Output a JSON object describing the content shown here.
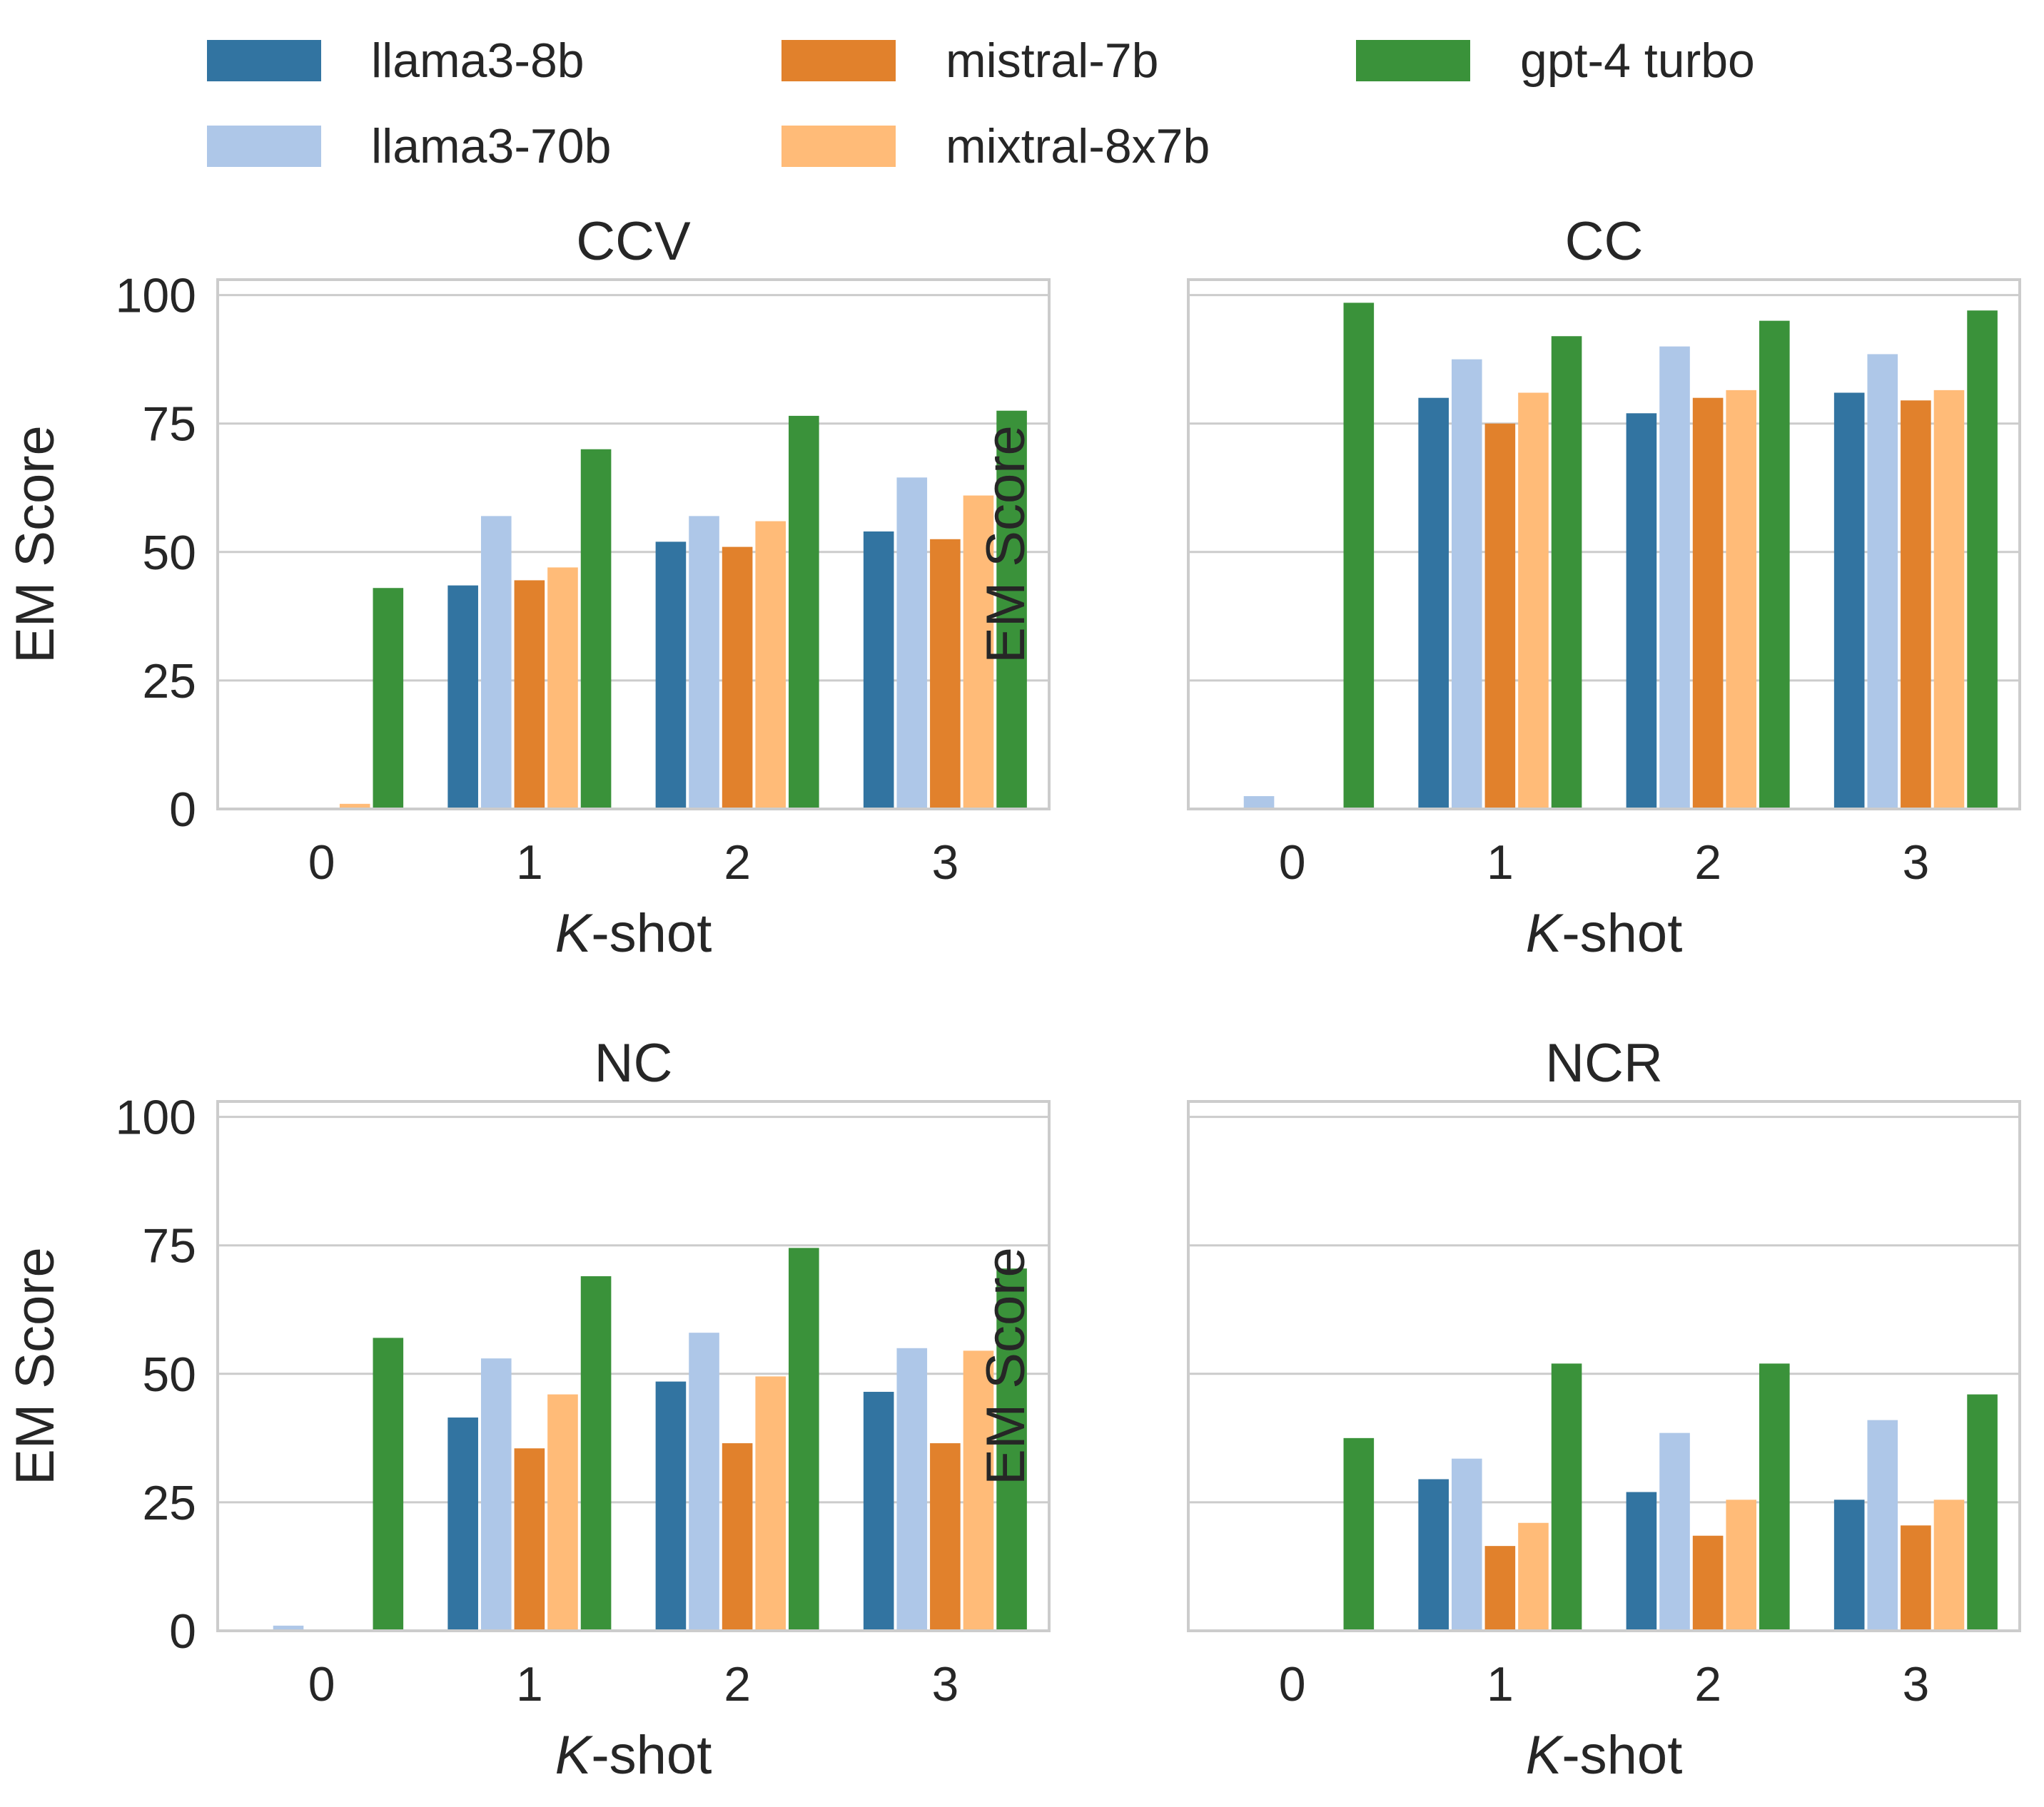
{
  "colors": {
    "llama3-8b": "#3274a1",
    "llama3-70b": "#aec7e8",
    "mistral-7b": "#e1812c",
    "mixtral-8x7b": "#ffbb78",
    "gpt-4 turbo": "#3a923a",
    "grid": "#cccccc",
    "frame": "#cccccc"
  },
  "legend": {
    "items": [
      {
        "name": "llama3-8b",
        "label": "llama3-8b"
      },
      {
        "name": "llama3-70b",
        "label": "llama3-70b"
      },
      {
        "name": "mistral-7b",
        "label": "mistral-7b"
      },
      {
        "name": "mixtral-8x7b",
        "label": "mixtral-8x7b"
      },
      {
        "name": "gpt-4 turbo",
        "label": "gpt-4 turbo"
      }
    ]
  },
  "chart_data": [
    {
      "type": "bar",
      "title": "CCV",
      "xlabel_italic": "K",
      "xlabel_rest": "-shot",
      "ylabel": "EM Score",
      "ylim": [
        0,
        103
      ],
      "yticks": [
        0,
        25,
        50,
        75,
        100
      ],
      "show_ytick_labels": true,
      "categories": [
        "0",
        "1",
        "2",
        "3"
      ],
      "series": [
        {
          "name": "llama3-8b",
          "values": [
            0,
            43.5,
            52,
            54
          ]
        },
        {
          "name": "llama3-70b",
          "values": [
            0,
            57,
            57,
            64.5
          ]
        },
        {
          "name": "mistral-7b",
          "values": [
            0,
            44.5,
            51,
            52.5
          ]
        },
        {
          "name": "mixtral-8x7b",
          "values": [
            1,
            47,
            56,
            61
          ]
        },
        {
          "name": "gpt-4 turbo",
          "values": [
            43,
            70,
            76.5,
            77.5
          ]
        }
      ]
    },
    {
      "type": "bar",
      "title": "CC",
      "xlabel_italic": "K",
      "xlabel_rest": "-shot",
      "ylabel": "EM Score",
      "ylim": [
        0,
        103
      ],
      "yticks": [
        0,
        25,
        50,
        75,
        100
      ],
      "show_ytick_labels": false,
      "categories": [
        "0",
        "1",
        "2",
        "3"
      ],
      "series": [
        {
          "name": "llama3-8b",
          "values": [
            0,
            80,
            77,
            81
          ]
        },
        {
          "name": "llama3-70b",
          "values": [
            2.5,
            87.5,
            90,
            88.5
          ]
        },
        {
          "name": "mistral-7b",
          "values": [
            0,
            75,
            80,
            79.5
          ]
        },
        {
          "name": "mixtral-8x7b",
          "values": [
            0,
            81,
            81.5,
            81.5
          ]
        },
        {
          "name": "gpt-4 turbo",
          "values": [
            98.5,
            92,
            95,
            97
          ]
        }
      ]
    },
    {
      "type": "bar",
      "title": "NC",
      "xlabel_italic": "K",
      "xlabel_rest": "-shot",
      "ylabel": "EM Score",
      "ylim": [
        0,
        103
      ],
      "yticks": [
        0,
        25,
        50,
        75,
        100
      ],
      "show_ytick_labels": true,
      "categories": [
        "0",
        "1",
        "2",
        "3"
      ],
      "series": [
        {
          "name": "llama3-8b",
          "values": [
            0,
            41.5,
            48.5,
            46.5
          ]
        },
        {
          "name": "llama3-70b",
          "values": [
            1,
            53,
            58,
            55
          ]
        },
        {
          "name": "mistral-7b",
          "values": [
            0,
            35.5,
            36.5,
            36.5
          ]
        },
        {
          "name": "mixtral-8x7b",
          "values": [
            0,
            46,
            49.5,
            54.5
          ]
        },
        {
          "name": "gpt-4 turbo",
          "values": [
            57,
            69,
            74.5,
            70.5
          ]
        }
      ]
    },
    {
      "type": "bar",
      "title": "NCR",
      "xlabel_italic": "K",
      "xlabel_rest": "-shot",
      "ylabel": "EM Score",
      "ylim": [
        0,
        103
      ],
      "yticks": [
        0,
        25,
        50,
        75,
        100
      ],
      "show_ytick_labels": false,
      "categories": [
        "0",
        "1",
        "2",
        "3"
      ],
      "series": [
        {
          "name": "llama3-8b",
          "values": [
            0,
            29.5,
            27,
            25.5
          ]
        },
        {
          "name": "llama3-70b",
          "values": [
            0,
            33.5,
            38.5,
            41
          ]
        },
        {
          "name": "mistral-7b",
          "values": [
            0,
            16.5,
            18.5,
            20.5
          ]
        },
        {
          "name": "mixtral-8x7b",
          "values": [
            0,
            21,
            25.5,
            25.5
          ]
        },
        {
          "name": "gpt-4 turbo",
          "values": [
            37.5,
            52,
            52,
            46
          ]
        }
      ]
    }
  ]
}
